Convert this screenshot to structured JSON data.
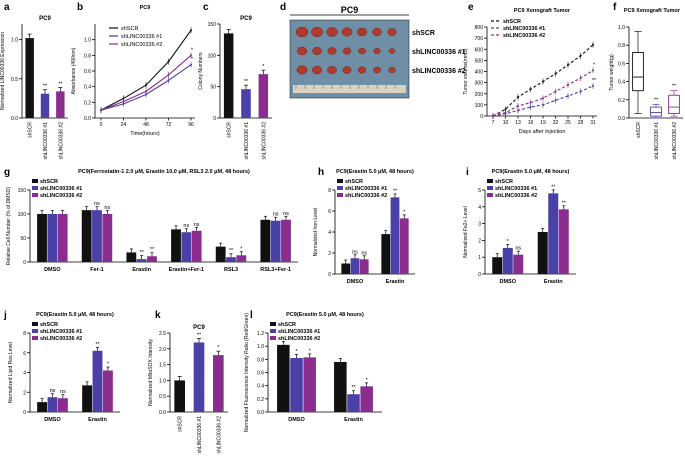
{
  "colors": {
    "black": "#111111",
    "blue": "#4b3fa8",
    "purple": "#8a2d8e",
    "red": "#b03a2e"
  },
  "legend_labels": [
    "shSCR",
    "shLINC00336 #1",
    "shLINC00336 #2"
  ],
  "stars": {
    "one": "*",
    "two": "**",
    "ns": "ns"
  },
  "chart_data": [
    {
      "id": "a",
      "type": "bar",
      "panel_letter": "a",
      "title": "PC9",
      "ylabel": "Normalized LINC00336 Expression",
      "ylim": [
        0,
        1.2
      ],
      "yticks": [
        "0.0",
        "0.5",
        "1.0"
      ],
      "categories": [
        "shSCR",
        "shLINC00336 #1",
        "shLINC00336 #2"
      ],
      "values": [
        1.02,
        0.31,
        0.34
      ],
      "sig": [
        "",
        "**",
        "**"
      ]
    },
    {
      "id": "b",
      "type": "line",
      "panel_letter": "b",
      "title": "PC9",
      "xlabel": "Time(hours)",
      "ylabel": "Absorbance (490nm)",
      "x": [
        0,
        24,
        48,
        72,
        96
      ],
      "xticks": [
        "0",
        "24",
        "48",
        "72",
        "96"
      ],
      "ylim": [
        0,
        1.2
      ],
      "yticks": [
        "0.0",
        "0.2",
        "0.4",
        "0.6",
        "0.8",
        "1.0"
      ],
      "series": [
        {
          "name": "shSCR",
          "values": [
            0.1,
            0.25,
            0.42,
            0.72,
            1.12
          ]
        },
        {
          "name": "shLINC00336 #1",
          "values": [
            0.1,
            0.18,
            0.3,
            0.48,
            0.68
          ]
        },
        {
          "name": "shLINC00336 #2",
          "values": [
            0.1,
            0.21,
            0.34,
            0.55,
            0.8
          ]
        }
      ],
      "sig": [
        "",
        "*",
        "*"
      ]
    },
    {
      "id": "c",
      "type": "bar",
      "panel_letter": "c",
      "title": "PC9",
      "ylabel": "Colony Numbers",
      "ylim": [
        0,
        150
      ],
      "yticks": [
        "0",
        "50",
        "100",
        "150"
      ],
      "categories": [
        "shSCR",
        "shLINC00336 #1",
        "shLINC00336 #2"
      ],
      "values": [
        135,
        46,
        70
      ],
      "sig": [
        "",
        "**",
        "*"
      ]
    },
    {
      "id": "d",
      "type": "image",
      "panel_letter": "d",
      "title": "PC9",
      "rows": [
        {
          "label": "shSCR",
          "sizes": [
            1.0,
            0.95,
            0.9,
            0.85,
            0.8,
            0.75,
            0.7
          ]
        },
        {
          "label": "shLINC00336 #1",
          "sizes": [
            0.8,
            0.75,
            0.7,
            0.65,
            0.6,
            0.55,
            0.5
          ]
        },
        {
          "label": "shLINC00336 #2",
          "sizes": [
            0.85,
            0.8,
            0.75,
            0.7,
            0.65,
            0.6,
            0.55
          ]
        }
      ]
    },
    {
      "id": "e",
      "type": "line",
      "panel_letter": "e",
      "title": "PC9 Xenograft Tumor",
      "xlabel": "Days after injection",
      "ylabel": "Tumor volume(mm3)",
      "x": [
        7,
        10,
        13,
        16,
        19,
        22,
        25,
        28,
        31
      ],
      "xticks": [
        "7",
        "10",
        "13",
        "16",
        "19",
        "22",
        "25",
        "28",
        "31"
      ],
      "ylim": [
        0,
        800
      ],
      "yticks": [
        "0",
        "100",
        "200",
        "300",
        "400",
        "500",
        "600",
        "700",
        "800"
      ],
      "series": [
        {
          "name": "shSCR",
          "values": [
            0,
            60,
            170,
            240,
            310,
            380,
            460,
            540,
            640
          ]
        },
        {
          "name": "shLINC00336 #1",
          "values": [
            0,
            20,
            50,
            80,
            100,
            140,
            180,
            220,
            270
          ]
        },
        {
          "name": "shLINC00336 #2",
          "values": [
            0,
            30,
            90,
            120,
            160,
            220,
            280,
            340,
            410
          ]
        }
      ],
      "sig": [
        "",
        "**",
        "*"
      ]
    },
    {
      "id": "f",
      "type": "box",
      "panel_letter": "f",
      "title": "PC9 Xenograft Tumor",
      "ylabel": "Tumor weight(g)",
      "ylim": [
        0,
        1.0
      ],
      "yticks": [
        "0.0",
        "0.2",
        "0.4",
        "0.6",
        "0.8",
        "1.0"
      ],
      "categories": [
        "shSCR",
        "shLINC00336 #1",
        "shLINC00336 #2"
      ],
      "boxes": [
        {
          "min": 0.05,
          "q1": 0.3,
          "median": 0.45,
          "q3": 0.72,
          "max": 0.95
        },
        {
          "min": 0.0,
          "q1": 0.02,
          "median": 0.06,
          "q3": 0.12,
          "max": 0.15
        },
        {
          "min": 0.02,
          "q1": 0.05,
          "median": 0.12,
          "q3": 0.25,
          "max": 0.3
        }
      ],
      "sig": [
        "",
        "**",
        "**"
      ]
    },
    {
      "id": "g",
      "type": "bar",
      "panel_letter": "g",
      "title": "PC9(Ferrostatin-1 2.0 μM, Erastin 10.0 μM, RSL3 2.0 μM, 48 hours)",
      "ylabel": "Relative Cell Number (% of DMSO)",
      "ylim": [
        0,
        150
      ],
      "yticks": [
        "0",
        "50",
        "100",
        "150"
      ],
      "categories": [
        "DMSO",
        "Fer-1",
        "Erastin",
        "Erastin+Fer-1",
        "RSL3",
        "RSL3+Fer-1"
      ],
      "series": [
        {
          "name": "shSCR",
          "values": [
            100,
            108,
            20,
            68,
            32,
            88
          ]
        },
        {
          "name": "shLINC00336 #1",
          "values": [
            100,
            108,
            6,
            62,
            10,
            86
          ]
        },
        {
          "name": "shLINC00336 #2",
          "values": [
            100,
            100,
            12,
            65,
            14,
            88
          ]
        }
      ],
      "sig": [
        [
          "",
          "",
          ""
        ],
        [
          "",
          "ns",
          "ns"
        ],
        [
          "",
          "**",
          "**"
        ],
        [
          "",
          "ns",
          "ns"
        ],
        [
          "",
          "**",
          "*"
        ],
        [
          "",
          "ns",
          "ns"
        ]
      ]
    },
    {
      "id": "h",
      "type": "bar",
      "panel_letter": "h",
      "title": "PC9(Erastin 5.0 μM, 48 hours)",
      "ylabel": "Normalized Iron Level",
      "ylim": [
        0,
        8
      ],
      "yticks": [
        "0",
        "2",
        "4",
        "6",
        "8"
      ],
      "categories": [
        "DMSO",
        "Erastin"
      ],
      "series": [
        {
          "name": "shSCR",
          "values": [
            1.0,
            3.8
          ]
        },
        {
          "name": "shLINC00336 #1",
          "values": [
            1.5,
            7.3
          ]
        },
        {
          "name": "shLINC00336 #2",
          "values": [
            1.4,
            5.3
          ]
        }
      ],
      "sig": [
        [
          "",
          "ns",
          "ns"
        ],
        [
          "",
          "**",
          "*"
        ]
      ]
    },
    {
      "id": "i",
      "type": "bar",
      "panel_letter": "i",
      "title": "PC9(Erastin 5.0 μM, 48 hours)",
      "ylabel": "Normalized Fe2+ Level",
      "ylim": [
        0,
        5
      ],
      "yticks": [
        "0",
        "1",
        "2",
        "3",
        "4",
        "5"
      ],
      "categories": [
        "DMSO",
        "Erastin"
      ],
      "series": [
        {
          "name": "shSCR",
          "values": [
            1.0,
            2.5
          ]
        },
        {
          "name": "shLINC00336 #1",
          "values": [
            1.55,
            4.8
          ]
        },
        {
          "name": "shLINC00336 #2",
          "values": [
            1.15,
            3.85
          ]
        }
      ],
      "sig": [
        [
          "",
          "*",
          "ns"
        ],
        [
          "",
          "**",
          "**"
        ]
      ]
    },
    {
      "id": "j",
      "type": "bar",
      "panel_letter": "j",
      "title": "PC9(Erastin 5.0 μM, 48 hours)",
      "ylabel": "Normalized Lipid Ros Level",
      "ylim": [
        0,
        8
      ],
      "yticks": [
        "0",
        "2",
        "4",
        "6",
        "8"
      ],
      "categories": [
        "DMSO",
        "Erastin"
      ],
      "series": [
        {
          "name": "shSCR",
          "values": [
            1.0,
            2.7
          ]
        },
        {
          "name": "shLINC00336 #1",
          "values": [
            1.5,
            6.2
          ]
        },
        {
          "name": "shLINC00336 #2",
          "values": [
            1.4,
            4.2
          ]
        }
      ],
      "sig": [
        [
          "",
          "ns",
          "ns"
        ],
        [
          "",
          "**",
          "*"
        ]
      ]
    },
    {
      "id": "k",
      "type": "bar",
      "panel_letter": "k",
      "title": "PC9",
      "ylabel": "Normalized MitoSOX Intensity",
      "ylim": [
        0,
        2.5
      ],
      "yticks": [
        "0.0",
        "0.5",
        "1.0",
        "1.5",
        "2.0",
        "2.5"
      ],
      "categories": [
        "shSCR",
        "shLINC00336 #1",
        "shLINC00336 #2"
      ],
      "values": [
        1.0,
        2.2,
        1.8
      ],
      "sig": [
        "",
        "**",
        "*"
      ]
    },
    {
      "id": "l",
      "type": "bar",
      "panel_letter": "l",
      "title": "PC9(Erastin 5.0 μM, 48 hours)",
      "ylabel": "Normalized Fluorescence Intensity Ratio (Red/Green)",
      "ylim": [
        0,
        1.2
      ],
      "yticks": [
        "0.0",
        "0.2",
        "0.4",
        "0.6",
        "0.8",
        "1.0",
        "1.2"
      ],
      "categories": [
        "DMSO",
        "Erastin"
      ],
      "series": [
        {
          "name": "shSCR",
          "values": [
            1.02,
            0.76
          ]
        },
        {
          "name": "shLINC00336 #1",
          "values": [
            0.82,
            0.27
          ]
        },
        {
          "name": "shLINC00336 #2",
          "values": [
            0.83,
            0.39
          ]
        }
      ],
      "sig": [
        [
          "",
          "*",
          "*"
        ],
        [
          "",
          "**",
          "*"
        ]
      ]
    }
  ]
}
